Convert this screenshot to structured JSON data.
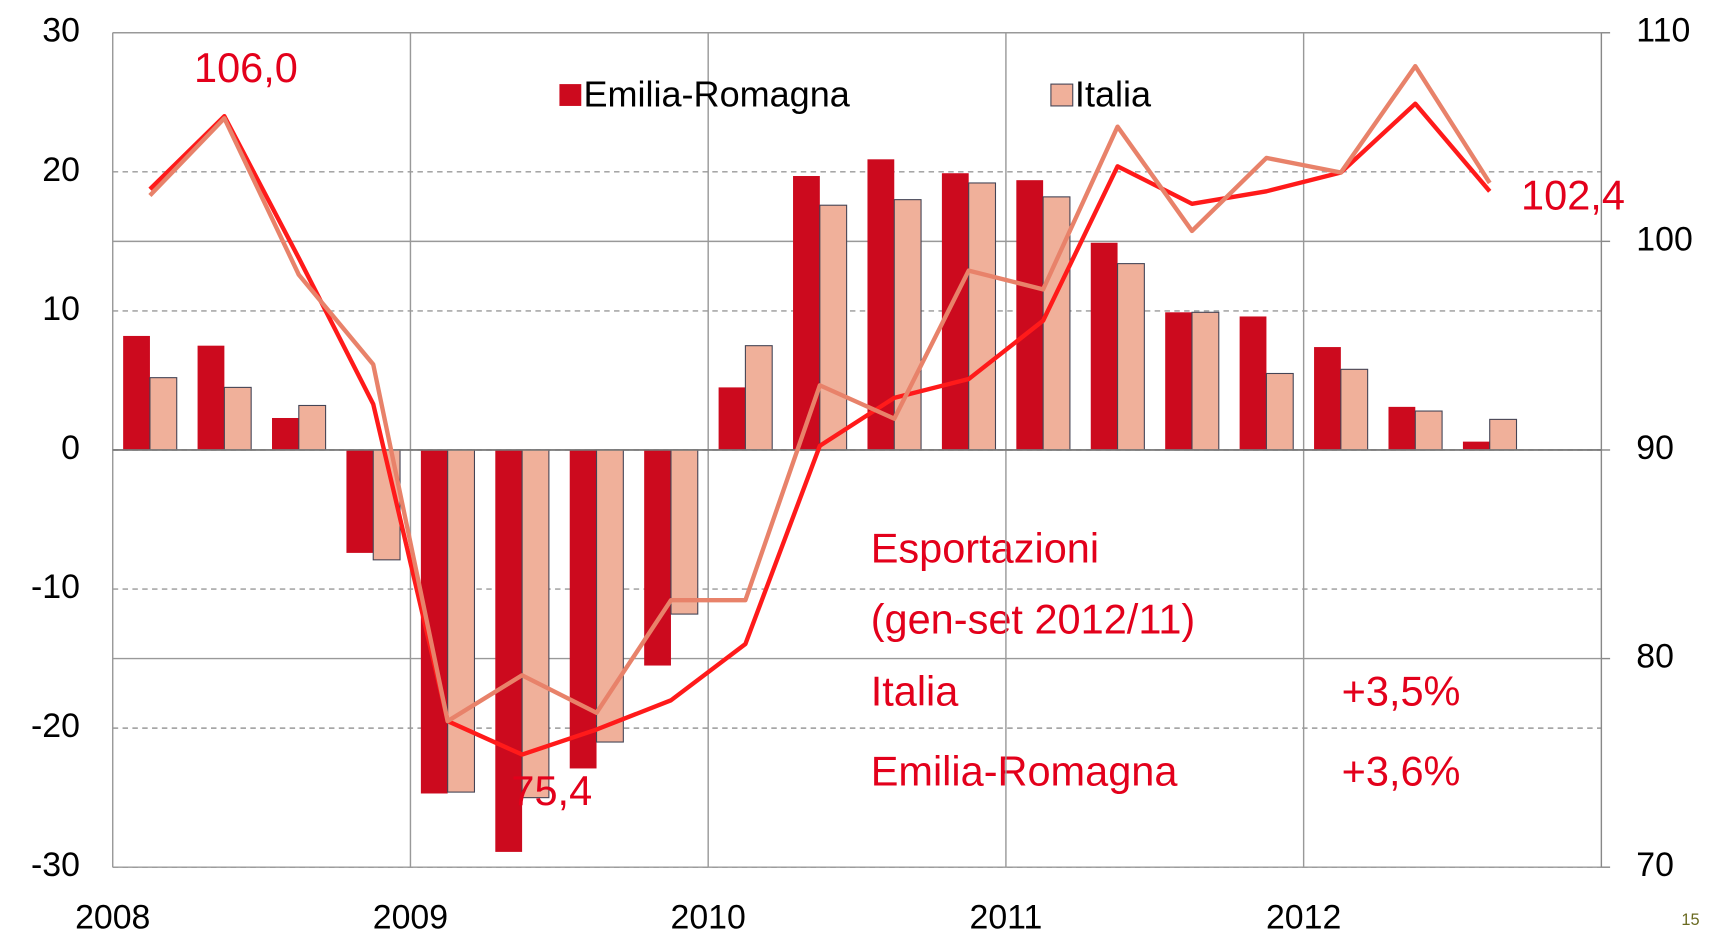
{
  "chart_data": {
    "type": "bar",
    "categories": [
      "2008",
      null,
      null,
      null,
      "2009",
      null,
      null,
      null,
      "2010",
      null,
      null,
      null,
      "2011",
      null,
      null,
      null,
      "2012",
      null,
      null,
      null
    ],
    "series": [
      {
        "name": "Emilia-Romagna",
        "color": "#cc0a1e",
        "values": [
          8.2,
          7.5,
          2.3,
          -7.4,
          -24.7,
          -28.9,
          -22.9,
          -15.5,
          4.5,
          19.7,
          20.9,
          19.9,
          19.4,
          14.9,
          9.9,
          9.6,
          7.4,
          3.1,
          0.6,
          null
        ]
      },
      {
        "name": "Italia",
        "color": "#f0b09a",
        "values": [
          5.2,
          4.5,
          3.2,
          -7.9,
          -24.6,
          -25.0,
          -21.0,
          -11.8,
          7.5,
          17.6,
          18.0,
          19.2,
          18.2,
          13.4,
          9.9,
          5.5,
          5.8,
          2.8,
          2.2,
          null
        ]
      }
    ],
    "lines": [
      {
        "color": "#ff1a1a",
        "axis": "y2",
        "values": [
          102.5,
          106.0,
          99.2,
          92.2,
          77.0,
          75.4,
          76.6,
          78.0,
          80.7,
          90.2,
          92.5,
          93.4,
          96.2,
          103.6,
          101.8,
          102.4,
          103.3,
          106.6,
          102.4,
          null
        ]
      },
      {
        "color": "#e8826a",
        "axis": "y2",
        "values": [
          102.2,
          105.9,
          98.4,
          94.1,
          77.0,
          79.2,
          77.4,
          82.8,
          82.8,
          93.1,
          91.5,
          98.6,
          97.7,
          105.5,
          100.5,
          104.0,
          103.3,
          108.4,
          102.8,
          null
        ]
      }
    ],
    "ylim": [
      -30,
      30
    ],
    "yticks": [
      -30,
      -20,
      -10,
      0,
      10,
      20,
      30
    ],
    "y2lim": [
      70,
      110
    ],
    "y2ticks": [
      70,
      80,
      90,
      100,
      110
    ],
    "grid": true,
    "annotations": [
      "106,0",
      "75,4",
      "102,4"
    ],
    "box": {
      "title": "Esportazioni",
      "subtitle": "(gen-set 2012/11)",
      "rows": [
        [
          "Italia",
          "+3,5%"
        ],
        [
          "Emilia-Romagna",
          "+3,6%"
        ]
      ]
    },
    "page_number": "15"
  }
}
